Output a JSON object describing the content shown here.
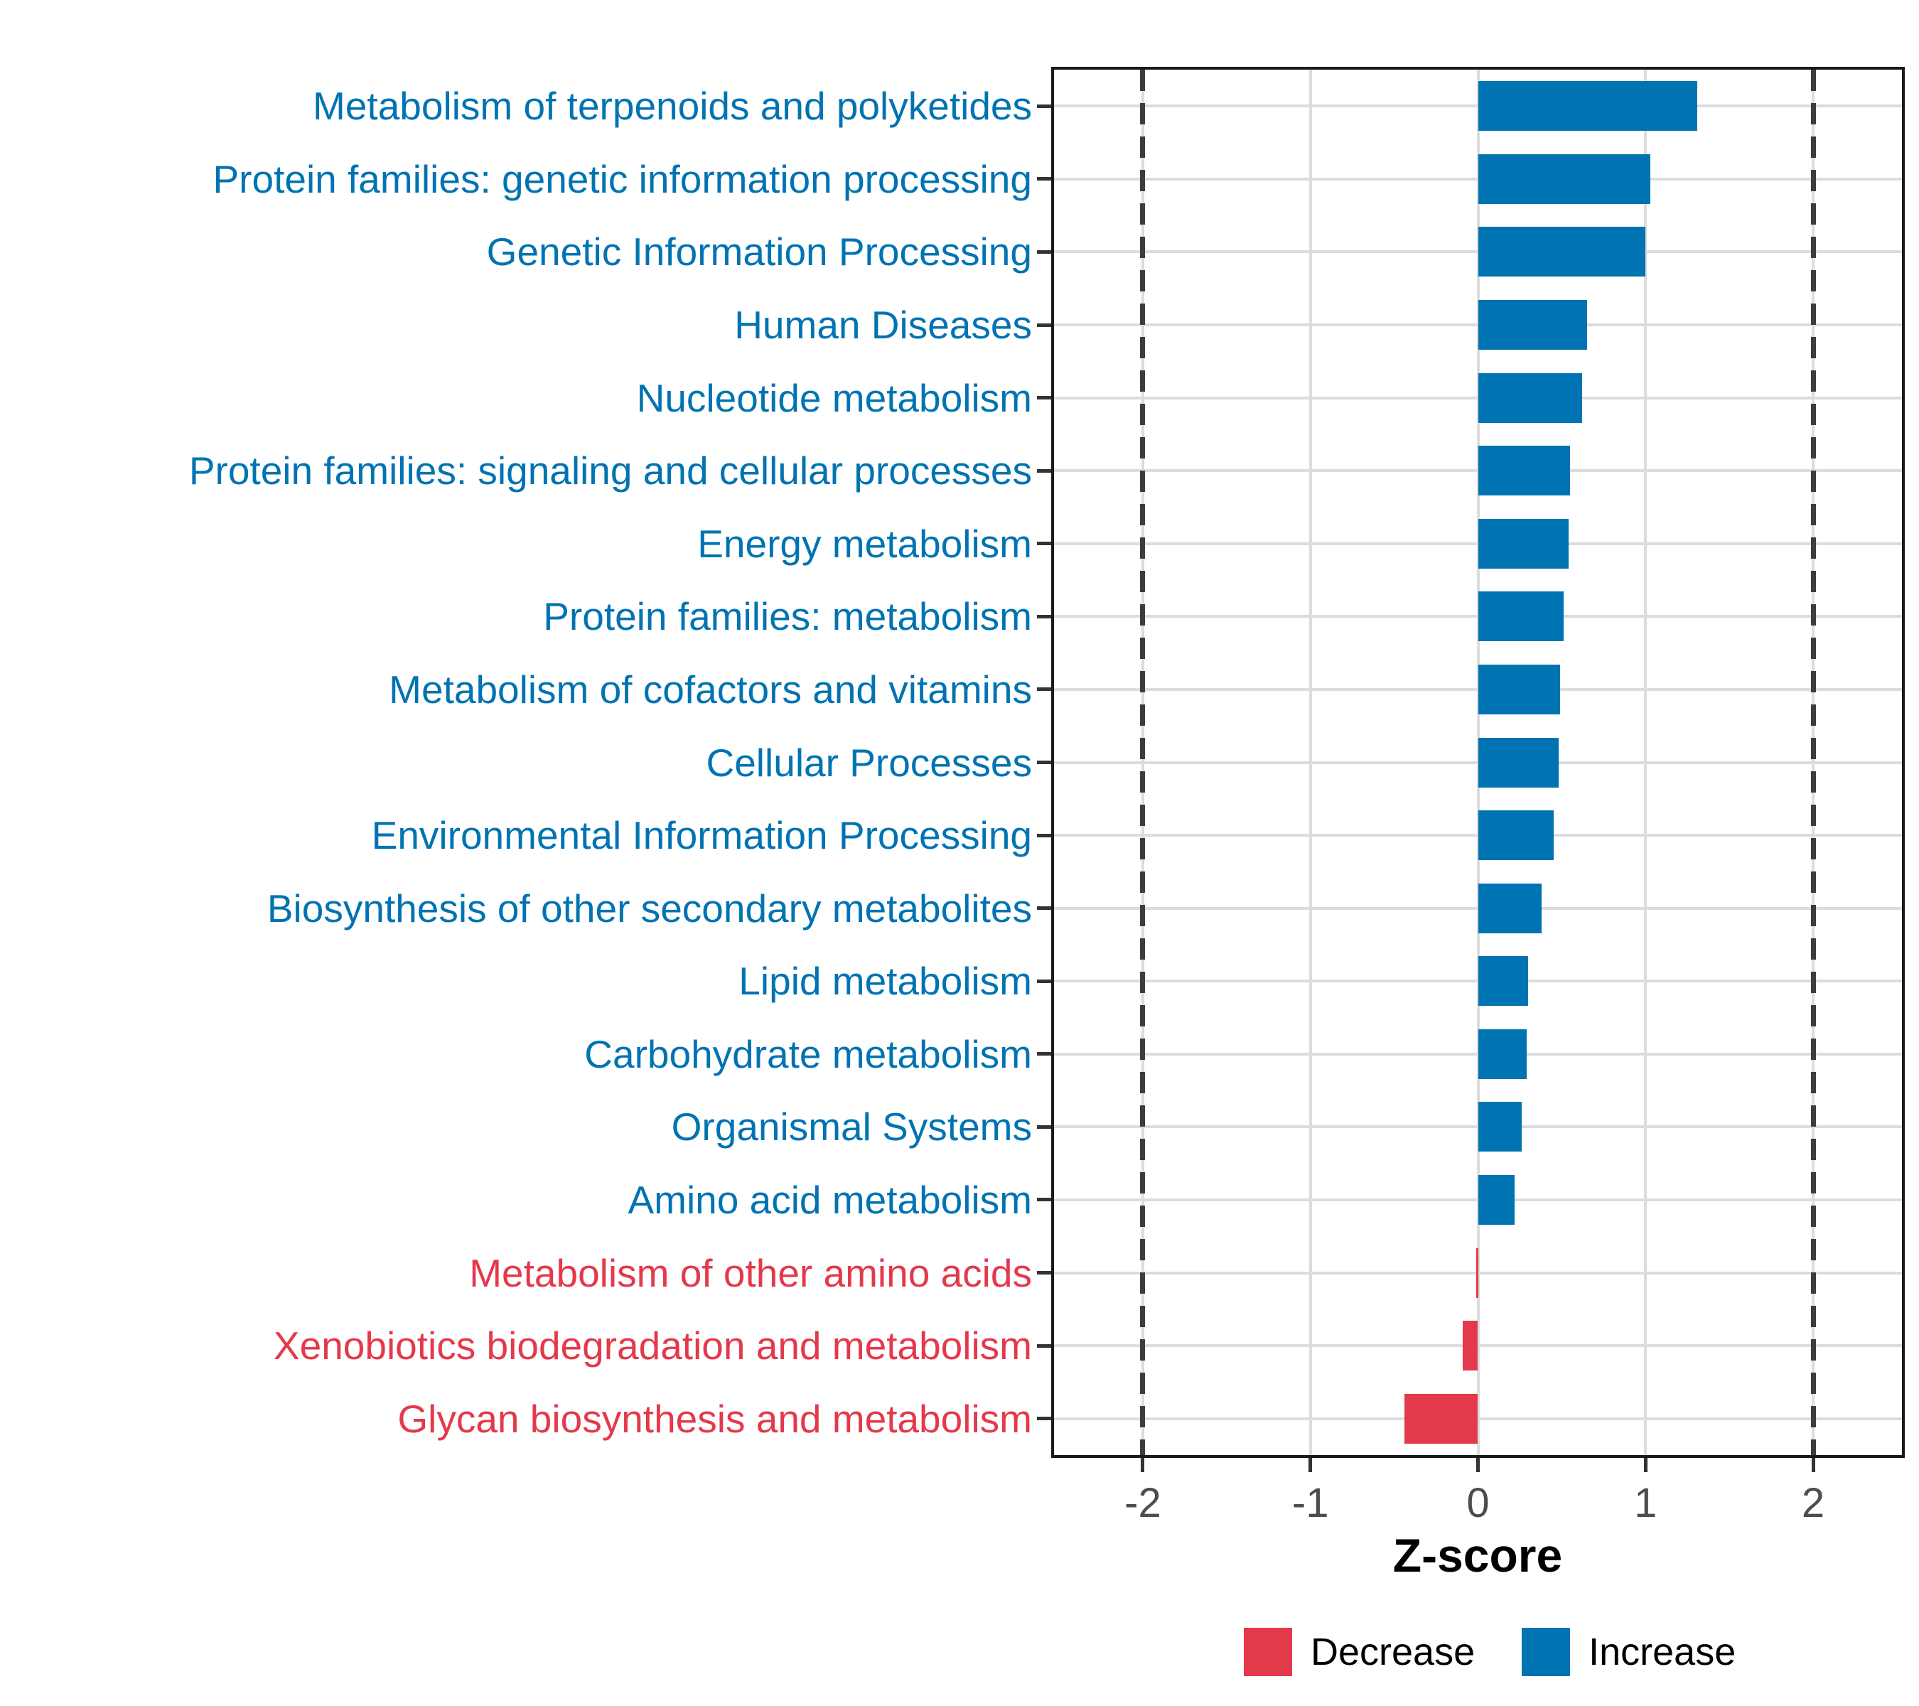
{
  "chart_data": {
    "type": "bar",
    "orientation": "horizontal",
    "xlabel": "Z-score",
    "x_ticks": [
      -2,
      -1,
      0,
      1,
      2
    ],
    "x_tick_labels": [
      "-2",
      "-1",
      "0",
      "1",
      "2"
    ],
    "xlim": [
      -2.53,
      2.53
    ],
    "reference_lines_dashed": [
      -2,
      2
    ],
    "grid": true,
    "categories": [
      "Metabolism of terpenoids and polyketides",
      "Protein families: genetic information processing",
      "Genetic Information Processing",
      "Human Diseases",
      "Nucleotide metabolism",
      "Protein families: signaling and cellular processes",
      "Energy metabolism",
      "Protein families: metabolism",
      "Metabolism of cofactors and vitamins",
      "Cellular Processes",
      "Environmental Information Processing",
      "Biosynthesis of other secondary metabolites",
      "Lipid metabolism",
      "Carbohydrate metabolism",
      "Organismal Systems",
      "Amino acid metabolism",
      "Metabolism of other amino acids",
      "Xenobiotics biodegradation and metabolism",
      "Glycan biosynthesis and metabolism"
    ],
    "values": [
      1.31,
      1.03,
      1.0,
      0.65,
      0.62,
      0.55,
      0.54,
      0.51,
      0.49,
      0.48,
      0.45,
      0.38,
      0.3,
      0.29,
      0.26,
      0.22,
      -0.01,
      -0.09,
      -0.44
    ],
    "directions": [
      "increase",
      "increase",
      "increase",
      "increase",
      "increase",
      "increase",
      "increase",
      "increase",
      "increase",
      "increase",
      "increase",
      "increase",
      "increase",
      "increase",
      "increase",
      "increase",
      "decrease",
      "decrease",
      "decrease"
    ],
    "legend_position": "bottom-right",
    "legend": [
      {
        "label": "Decrease",
        "color": "#e4394b"
      },
      {
        "label": "Increase",
        "color": "#0073b2"
      }
    ]
  },
  "colors": {
    "increase": "#0073b2",
    "decrease": "#e4394b",
    "gridline": "#dcdcdc",
    "panel_border": "#1a1a1a",
    "reference_line": "#3d3d3d",
    "tick_label": "#4d4d4d"
  }
}
